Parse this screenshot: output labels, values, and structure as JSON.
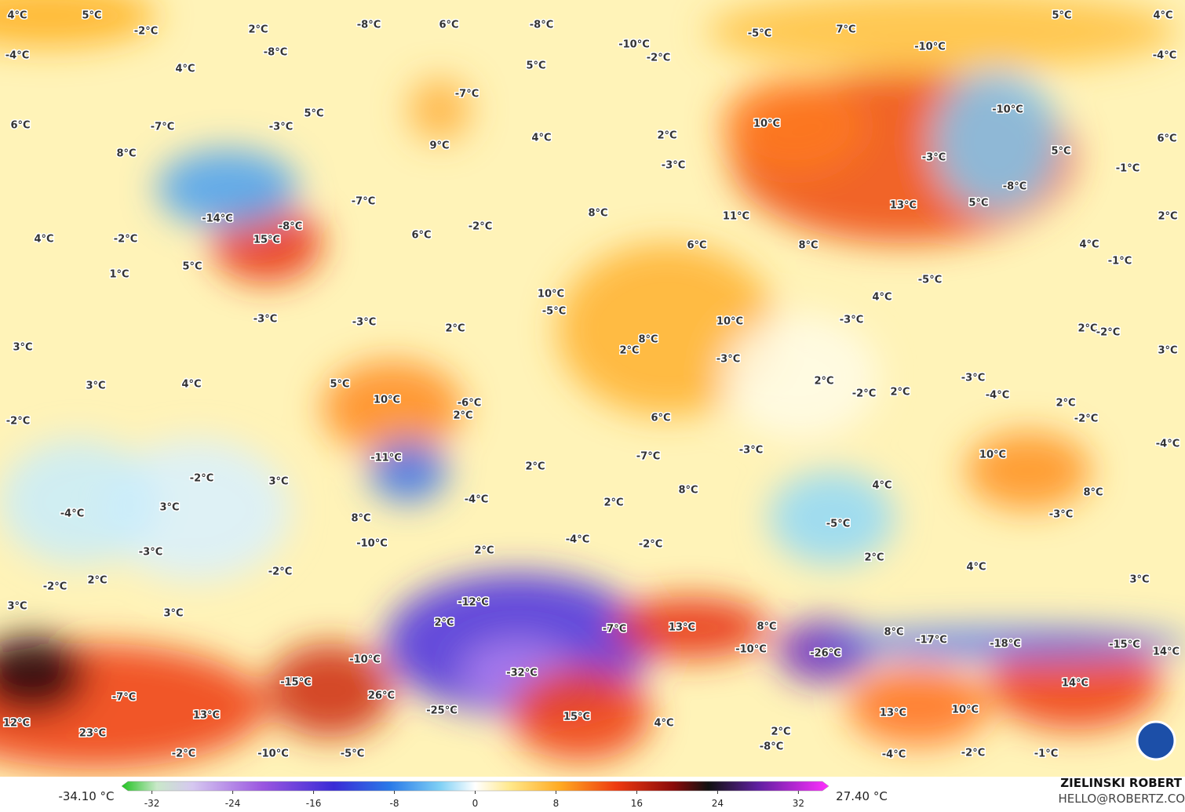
{
  "map": {
    "labels": [
      "4°C",
      "5°C",
      "-2°C",
      "2°C",
      "-8°C",
      "6°C",
      "-8°C",
      "-5°C",
      "7°C",
      "5°C",
      "4°C",
      "-4°C",
      "-8°C",
      "-10°C",
      "-2°C",
      "-10°C",
      "-4°C",
      "4°C",
      "5°C",
      "-7°C",
      "5°C",
      "-10°C",
      "6°C",
      "-7°C",
      "-3°C",
      "10°C",
      "6°C",
      "4°C",
      "2°C",
      "9°C",
      "8°C",
      "5°C",
      "-3°C",
      "-3°C",
      "-1°C",
      "-8°C",
      "-7°C",
      "5°C",
      "13°C",
      "11°C",
      "2°C",
      "-14°C",
      "-8°C",
      "-2°C",
      "8°C",
      "4°C",
      "-2°C",
      "6°C",
      "15°C",
      "6°C",
      "8°C",
      "4°C",
      "-1°C",
      "5°C",
      "1°C",
      "-5°C",
      "4°C",
      "10°C",
      "-5°C",
      "-3°C",
      "-3°C",
      "2°C",
      "10°C",
      "-3°C",
      "2°C",
      "-2°C",
      "3°C",
      "8°C",
      "2°C",
      "-3°C",
      "3°C",
      "2°C",
      "-3°C",
      "3°C",
      "4°C",
      "5°C",
      "-2°C",
      "2°C",
      "-4°C",
      "10°C",
      "-6°C",
      "2°C",
      "-2°C",
      "6°C",
      "2°C",
      "-2°C",
      "-11°C",
      "-7°C",
      "-3°C",
      "10°C",
      "-4°C",
      "2°C",
      "-2°C",
      "3°C",
      "8°C",
      "4°C",
      "8°C",
      "-4°C",
      "-4°C",
      "3°C",
      "2°C",
      "-3°C",
      "8°C",
      "-5°C",
      "-10°C",
      "-4°C",
      "2°C",
      "-2°C",
      "-3°C",
      "-2°C",
      "2°C",
      "4°C",
      "2°C",
      "-2°C",
      "3°C",
      "3°C",
      "-12°C",
      "3°C",
      "2°C",
      "-7°C",
      "13°C",
      "8°C",
      "8°C",
      "-17°C",
      "-18°C",
      "-15°C",
      "-10°C",
      "-10°C",
      "-26°C",
      "14°C",
      "-32°C",
      "-15°C",
      "-7°C",
      "26°C",
      "14°C",
      "12°C",
      "13°C",
      "-25°C",
      "15°C",
      "4°C",
      "13°C",
      "10°C",
      "23°C",
      "2°C",
      "-2°C",
      "-10°C",
      "-5°C",
      "-8°C",
      "-4°C",
      "-2°C",
      "-1°C"
    ]
  },
  "legend": {
    "min_label": "-34.10 °C",
    "max_label": "27.40 °C",
    "lim": [
      -35,
      35
    ],
    "ticks": [
      -32,
      -24,
      -16,
      -8,
      0,
      8,
      16,
      24,
      32
    ]
  },
  "credit": {
    "name": "ZIELINSKI ROBERT",
    "email": "HELLO@ROBERTZ.CO"
  }
}
